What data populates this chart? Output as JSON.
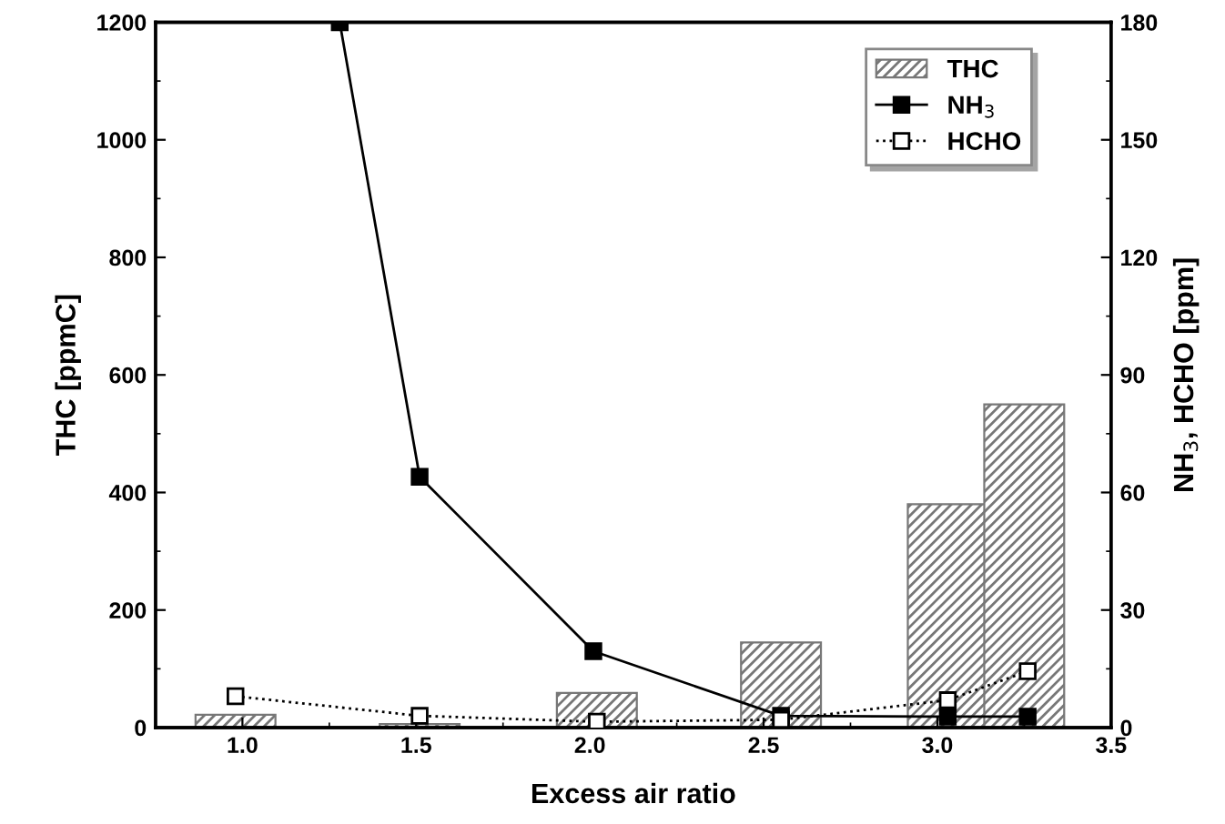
{
  "chart_data": {
    "type": "bar",
    "xlabel": "Excess air ratio",
    "ylabel": "THC [ppmC]",
    "y2label": "NH$_{3}$, HCHO [ppm]",
    "xlim": [
      0.75,
      3.5
    ],
    "xticks": [
      {
        "value": 1,
        "label": "1.0"
      },
      1.5,
      {
        "value": 2,
        "label": "2.0"
      },
      2.5,
      {
        "value": 3,
        "label": "3.0"
      },
      3.5
    ],
    "ylim": [
      0,
      1200
    ],
    "yticks": [
      0,
      200,
      400,
      600,
      800,
      1000,
      1200
    ],
    "y2lim": [
      0,
      180
    ],
    "y2ticks": [
      0,
      30,
      60,
      90,
      120,
      150,
      180
    ],
    "legend": "top right",
    "grid": false,
    "series": [
      {
        "name": "THC",
        "color": "#777777",
        "x": [
          0.98,
          1.51,
          2.02,
          2.55,
          3.03,
          3.25
        ],
        "values": [
          22,
          6,
          59,
          145,
          380,
          550
        ]
      },
      {
        "name": "NH$_{3}$",
        "type": "line",
        "axis": "y2",
        "color": "#000000",
        "marker": "square",
        "line_style": "solid",
        "x": [
          1.28,
          1.51,
          2.01,
          2.55,
          3.03,
          3.26
        ],
        "values": [
          180,
          64,
          19.5,
          3,
          2.8,
          2.8
        ]
      },
      {
        "name": "HCHO",
        "type": "line",
        "axis": "y2",
        "color": "#000000",
        "marker": "square",
        "line_style": "dotted",
        "x": [
          0.98,
          1.51,
          2.02,
          2.55,
          3.03,
          3.26
        ],
        "values": [
          8,
          3,
          1.5,
          2,
          7,
          14.4
        ]
      }
    ]
  }
}
